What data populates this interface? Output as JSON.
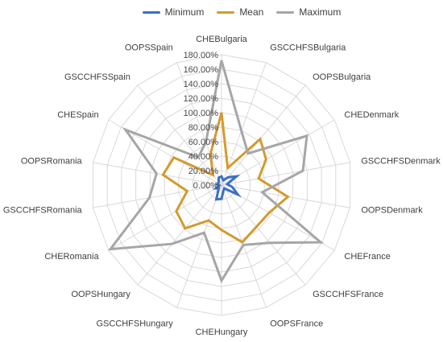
{
  "chart_data": {
    "type": "radar",
    "title": "",
    "categories": [
      "CHEBulgaria",
      "GSCCHFSBulgaria",
      "OOPSBulgaria",
      "CHEDenmark",
      "GSCCHFSDenmark",
      "OOPSDenmark",
      "CHEFrance",
      "GSCCHFSFrance",
      "OOPSFrance",
      "CHEHungary",
      "GSCCHFSHungary",
      "OOPSHungary",
      "CHERomania",
      "GSCCHFSRomania",
      "OOPSRomania",
      "CHESpain",
      "GSCCHFSSpain",
      "OOPSSpain"
    ],
    "series": [
      {
        "name": "Minimum",
        "color": "#3A6FC4",
        "values": [
          12,
          7,
          14,
          24,
          8,
          15,
          26,
          6,
          8,
          19,
          21,
          6,
          9,
          3,
          6,
          5,
          6,
          11
        ]
      },
      {
        "name": "Mean",
        "color": "#D49A2E",
        "values": [
          100,
          25,
          83,
          71,
          52,
          93,
          76,
          75,
          84,
          62,
          52,
          78,
          72,
          48,
          82,
          76,
          18,
          45
        ]
      },
      {
        "name": "Maximum",
        "color": "#A6A6A6",
        "values": [
          172,
          80,
          57,
          136,
          114,
          57,
          158,
          104,
          88,
          132,
          70,
          106,
          177,
          101,
          91,
          153,
          50,
          63
        ]
      }
    ],
    "rlim": [
      0,
      180
    ],
    "tick_values": [
      0,
      20,
      40,
      60,
      80,
      100,
      120,
      140,
      160,
      180
    ],
    "tick_labels": [
      "0.00%",
      "20.00%",
      "40.00%",
      "60.00%",
      "80.00%",
      "100.00%",
      "120.00%",
      "140.00%",
      "160.00%",
      "180.00%"
    ],
    "grid": true,
    "legend_position": "top"
  }
}
